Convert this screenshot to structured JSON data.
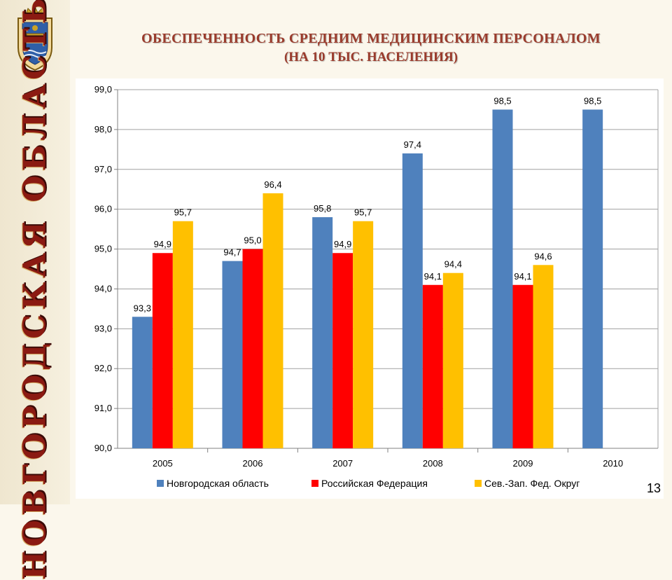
{
  "title": {
    "line1": "ОБЕСПЕЧЕННОСТЬ СРЕДНИМ МЕДИЦИНСКИМ ПЕРСОНАЛОМ",
    "line2": "(НА 10 ТЫС. НАСЕЛЕНИЯ)"
  },
  "sidebar": {
    "vertical_title": "НОВГОРОДСКАЯ ОБЛАСТЬ",
    "emblem_icon": "coat-of-arms-icon"
  },
  "page_number": "13",
  "colors": {
    "novgorod": "#4f81bd",
    "russia": "#ff0000",
    "nw_district": "#ffc000",
    "title": "#9a3b2c",
    "sidebar_text": "#8b1a12"
  },
  "chart_data": {
    "type": "bar",
    "categories": [
      "2005",
      "2006",
      "2007",
      "2008",
      "2009",
      "2010"
    ],
    "series": [
      {
        "name": "Новгородская область",
        "values": [
          93.3,
          94.7,
          95.8,
          97.4,
          98.5,
          98.5
        ],
        "labels": [
          "93,3",
          "94,7",
          "95,8",
          "97,4",
          "98,5",
          "98,5"
        ],
        "color": "#4f81bd"
      },
      {
        "name": "Российская Федерация",
        "values": [
          94.9,
          95.0,
          94.9,
          94.1,
          94.1,
          null
        ],
        "labels": [
          "94,9",
          "95,0",
          "94,9",
          "94,1",
          "94,1",
          null
        ],
        "color": "#ff0000"
      },
      {
        "name": "Сев.-Зап. Фед. Округ",
        "values": [
          95.7,
          96.4,
          95.7,
          94.4,
          94.6,
          null
        ],
        "labels": [
          "95,7",
          "96,4",
          "95,7",
          "94,4",
          "94,6",
          null
        ],
        "color": "#ffc000"
      }
    ],
    "ylim": [
      90.0,
      99.0
    ],
    "yticks": [
      "90,0",
      "91,0",
      "92,0",
      "93,0",
      "94,0",
      "95,0",
      "96,0",
      "97,0",
      "98,0",
      "99,0"
    ],
    "grid": true,
    "legend": "bottom"
  }
}
